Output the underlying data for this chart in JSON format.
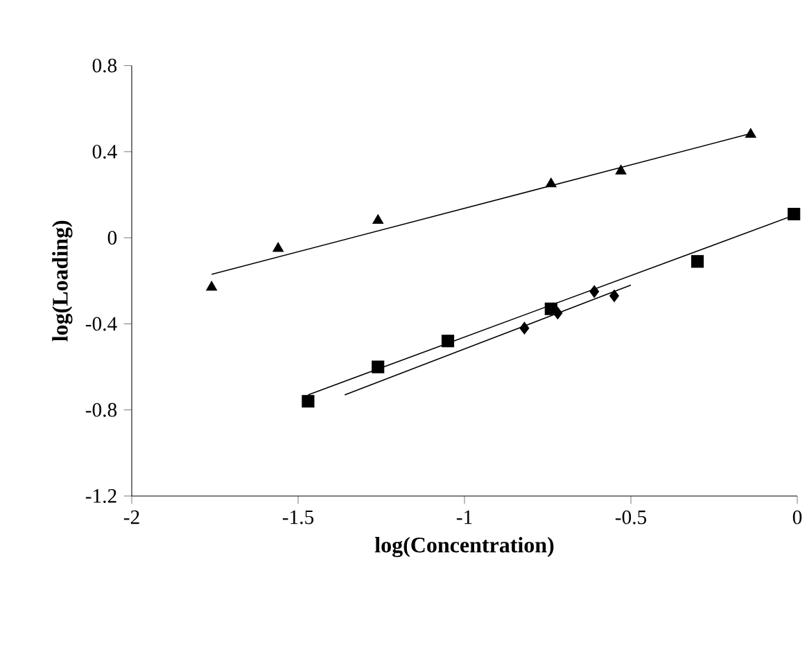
{
  "chart_data": {
    "type": "scatter",
    "xlabel": "log(Concentration)",
    "ylabel": "log(Loading)",
    "xlim": [
      -2,
      0
    ],
    "ylim": [
      -1.2,
      0.8
    ],
    "xticks": [
      -2,
      -1.5,
      -1,
      -0.5,
      0
    ],
    "yticks": [
      -1.2,
      -0.8,
      -0.4,
      0,
      0.4,
      0.8
    ],
    "grid": false,
    "series": [
      {
        "marker": "diamond",
        "color": "#000000",
        "x": [
          -0.82,
          -0.72,
          -0.61,
          -0.55
        ],
        "values": [
          -0.42,
          -0.35,
          -0.25,
          -0.27
        ]
      },
      {
        "marker": "square",
        "color": "#000000",
        "x": [
          -1.47,
          -1.26,
          -1.05,
          -0.74,
          -0.3,
          -0.01
        ],
        "values": [
          -0.76,
          -0.6,
          -0.48,
          -0.33,
          -0.11,
          0.11
        ]
      },
      {
        "marker": "triangle",
        "color": "#000000",
        "x": [
          -1.76,
          -1.56,
          -1.26,
          -0.74,
          -0.53,
          -0.14
        ],
        "values": [
          -0.23,
          -0.05,
          0.08,
          0.25,
          0.31,
          0.48
        ]
      },
      {
        "type": "line",
        "marker": "none",
        "color": "#000000",
        "x": [
          -1.36,
          -0.5
        ],
        "values": [
          -0.73,
          -0.22
        ]
      },
      {
        "type": "line",
        "marker": "none",
        "color": "#000000",
        "x": [
          -1.47,
          0
        ],
        "values": [
          -0.73,
          0.11
        ]
      },
      {
        "type": "line",
        "marker": "none",
        "color": "#000000",
        "x": [
          -1.76,
          -0.15
        ],
        "values": [
          -0.17,
          0.48
        ]
      }
    ]
  }
}
